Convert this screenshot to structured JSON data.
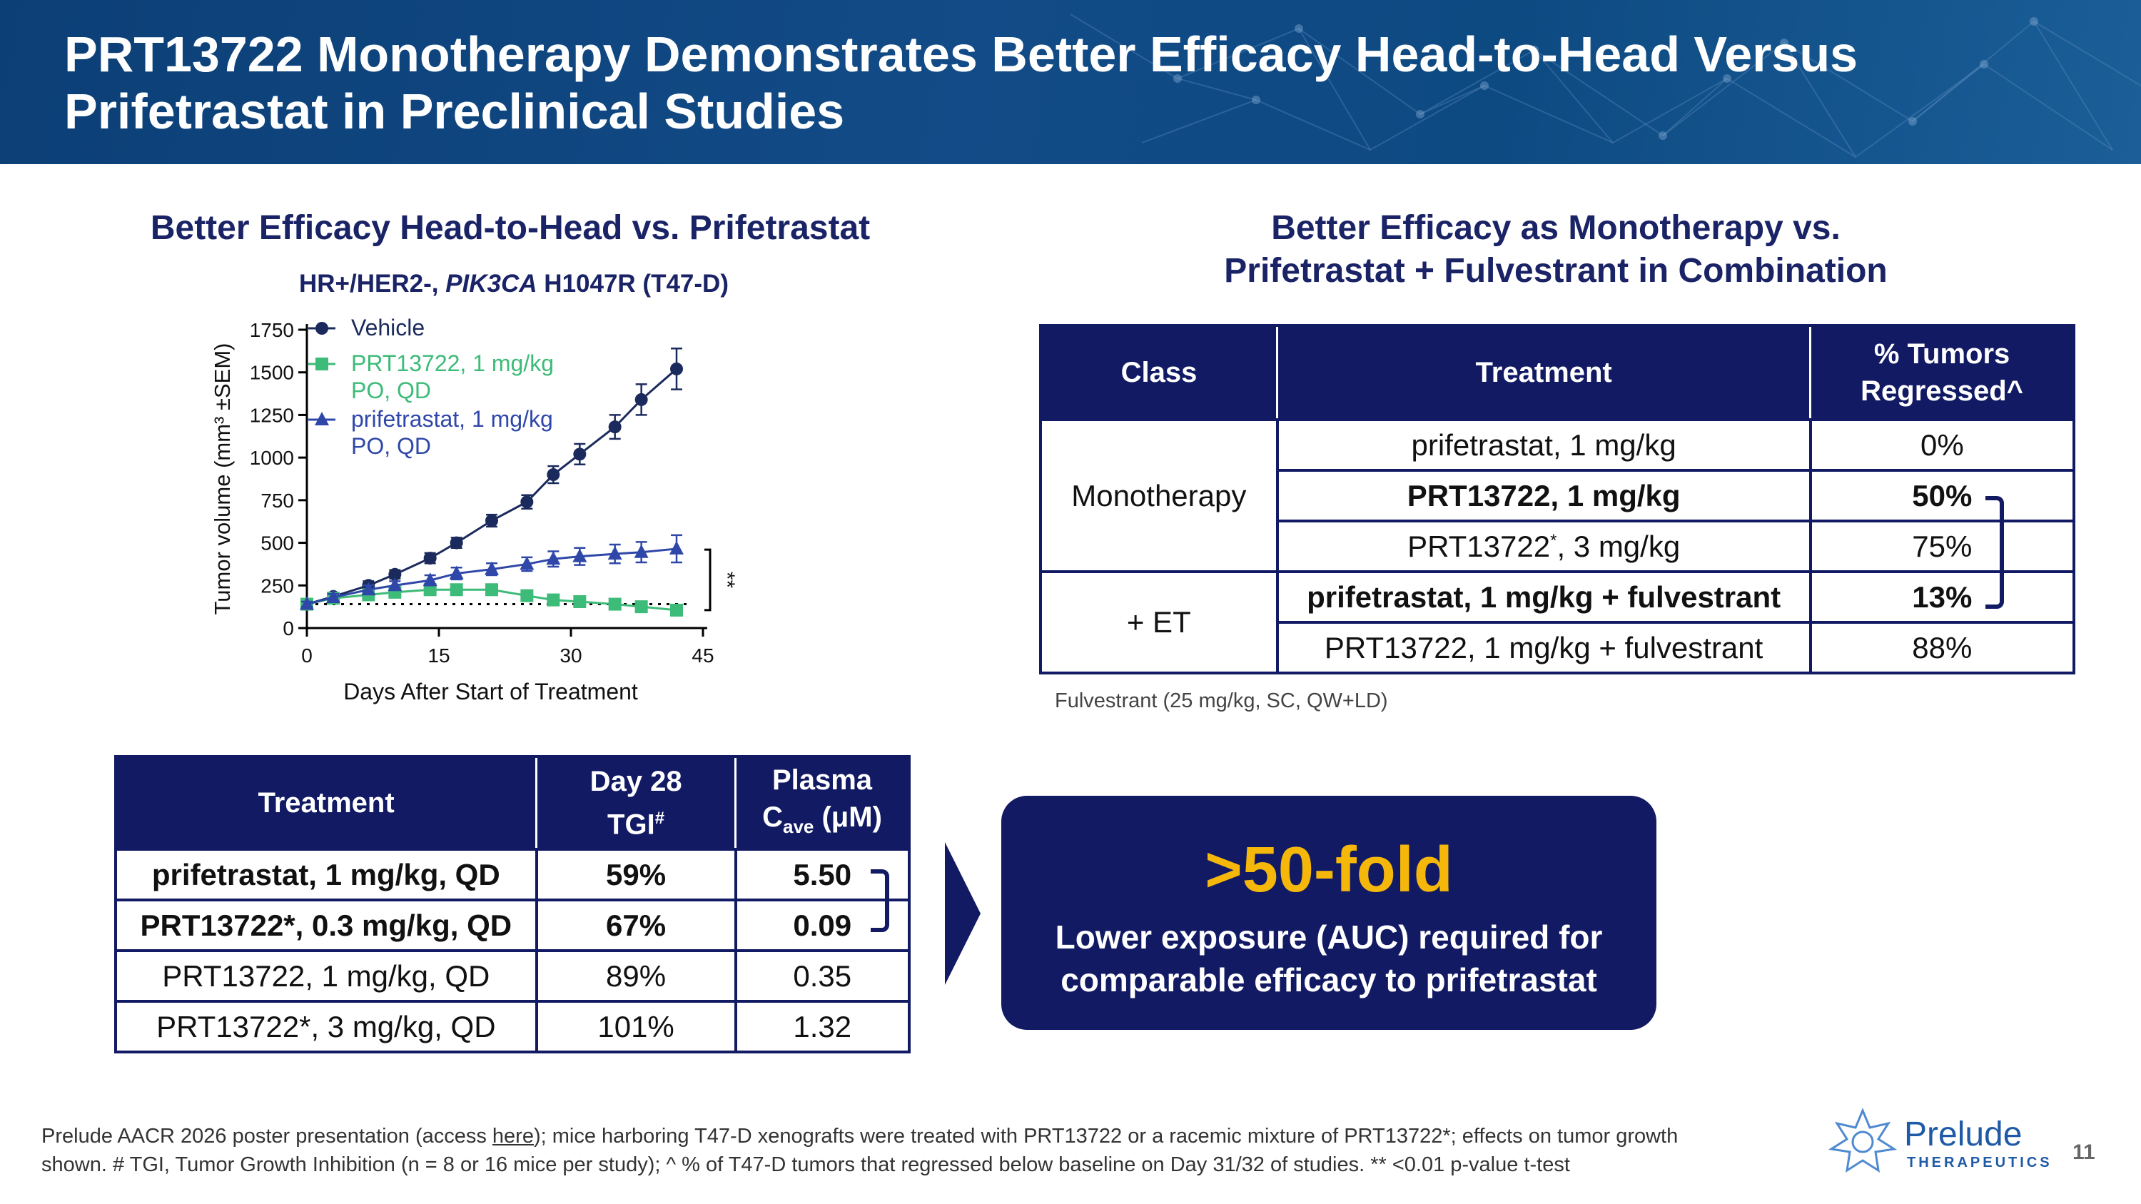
{
  "header": {
    "title_line1": "PRT13722 Monotherapy Demonstrates Better Efficacy Head-to-Head Versus",
    "title_line2": "Prifetrastat in Preclinical Studies"
  },
  "left_section": {
    "title": "Better Efficacy Head-to-Head vs. Prifetrastat",
    "subtitle_pre": "HR+/HER2-, ",
    "subtitle_italic": "PIK3CA",
    "subtitle_post": " H1047R (T47-D)"
  },
  "right_section": {
    "title_line1": "Better Efficacy as Monotherapy vs.",
    "title_line2": "Prifetrastat + Fulvestrant in Combination"
  },
  "chart_data": {
    "type": "line",
    "xlabel": "Days After Start of Treatment",
    "ylabel": "Tumor volume (mm³ ±SEM)",
    "xlim": [
      0,
      45
    ],
    "ylim": [
      0,
      1750
    ],
    "xticks": [
      0,
      15,
      30,
      45
    ],
    "yticks": [
      0,
      250,
      500,
      750,
      1000,
      1250,
      1500,
      1750
    ],
    "significance_label": "**",
    "legend_position": "top-left",
    "series": [
      {
        "name": "Vehicle",
        "marker": "circle",
        "color": "#1b2a5c",
        "x": [
          0,
          3,
          7,
          10,
          14,
          17,
          21,
          25,
          28,
          31,
          35,
          38,
          42
        ],
        "y": [
          140,
          185,
          250,
          315,
          410,
          500,
          630,
          740,
          900,
          1020,
          1180,
          1340,
          1520
        ],
        "err": [
          20,
          20,
          25,
          25,
          30,
          30,
          35,
          40,
          50,
          60,
          70,
          90,
          120
        ]
      },
      {
        "name": "PRT13722, 1 mg/kg PO, QD",
        "legend_line1": "PRT13722, 1 mg/kg",
        "legend_line2": "PO, QD",
        "marker": "square",
        "color": "#3dbb78",
        "x": [
          0,
          3,
          7,
          10,
          14,
          17,
          21,
          25,
          28,
          31,
          35,
          38,
          42
        ],
        "y": [
          140,
          175,
          195,
          210,
          225,
          225,
          225,
          190,
          165,
          155,
          140,
          125,
          105
        ],
        "err": [
          15,
          15,
          20,
          20,
          25,
          25,
          25,
          20,
          20,
          20,
          15,
          15,
          15
        ]
      },
      {
        "name": "prifetrastat, 1 mg/kg PO, QD",
        "legend_line1": "prifetrastat, 1 mg/kg",
        "legend_line2": "PO, QD",
        "marker": "triangle",
        "color": "#2f47a8",
        "x": [
          0,
          3,
          7,
          10,
          14,
          17,
          21,
          25,
          28,
          31,
          35,
          38,
          42
        ],
        "y": [
          140,
          180,
          225,
          250,
          280,
          320,
          345,
          375,
          405,
          420,
          435,
          445,
          465
        ],
        "err": [
          15,
          20,
          25,
          25,
          30,
          35,
          35,
          40,
          45,
          50,
          55,
          60,
          80
        ]
      }
    ]
  },
  "class_table": {
    "headers": [
      "Class",
      "Treatment",
      "% Tumors Regressed^"
    ],
    "header_pct_line1": "% Tumors",
    "header_pct_line2": "Regressed^",
    "class_mono": "Monotherapy",
    "class_et": "+ ET",
    "rows": [
      {
        "treatment": "prifetrastat, 1 mg/kg",
        "pct": "0%"
      },
      {
        "treatment": "PRT13722, 1 mg/kg",
        "pct": "50%"
      },
      {
        "treatment_pre": "PRT13722",
        "treatment_sup": "*",
        "treatment_post": ", 3 mg/kg",
        "pct": "75%"
      },
      {
        "treatment": "prifetrastat, 1 mg/kg + fulvestrant",
        "pct": "13%"
      },
      {
        "treatment": "PRT13722, 1 mg/kg + fulvestrant",
        "pct": "88%"
      }
    ],
    "note": "Fulvestrant (25 mg/kg, SC, QW+LD)"
  },
  "tgi_table": {
    "h_treatment": "Treatment",
    "h_day28_line1": "Day 28",
    "h_day28_line2": "TGI",
    "h_day28_sup": "#",
    "h_plasma_line1": "Plasma",
    "h_plasma_c": "C",
    "h_plasma_sub": "ave",
    "h_plasma_unit": " (μM)",
    "rows": [
      {
        "treatment": "prifetrastat, 1 mg/kg, QD",
        "tgi": "59%",
        "plasma": "5.50"
      },
      {
        "treatment": "PRT13722*, 0.3 mg/kg, QD",
        "tgi": "67%",
        "plasma": "0.09"
      },
      {
        "treatment": "PRT13722, 1 mg/kg, QD",
        "tgi": "89%",
        "plasma": "0.35"
      },
      {
        "treatment": "PRT13722*, 3 mg/kg, QD",
        "tgi": "101%",
        "plasma": "1.32"
      }
    ]
  },
  "callout": {
    "big": ">50-fold",
    "line1": "Lower exposure (AUC) required for",
    "line2": "comparable efficacy to prifetrastat"
  },
  "footer": {
    "pre": "Prelude AACR 2026 poster presentation (access ",
    "link": "here",
    "post": "); mice harboring T47-D xenografts were treated with PRT13722 or a racemic mixture of PRT13722*; effects on tumor growth",
    "line2": "shown. # TGI, Tumor Growth Inhibition (n = 8 or 16 mice per study); ^ % of T47-D tumors that regressed below baseline on Day 31/32 of studies. ** <0.01 p-value t-test"
  },
  "logo": {
    "name": "Prelude",
    "sub": "THERAPEUTICS",
    "icon": "molecule-star-icon"
  },
  "page_number": "11",
  "colors": {
    "navy": "#111a63",
    "header_blue": "#124b87",
    "gold": "#f5b80a",
    "green": "#3dbb78"
  }
}
